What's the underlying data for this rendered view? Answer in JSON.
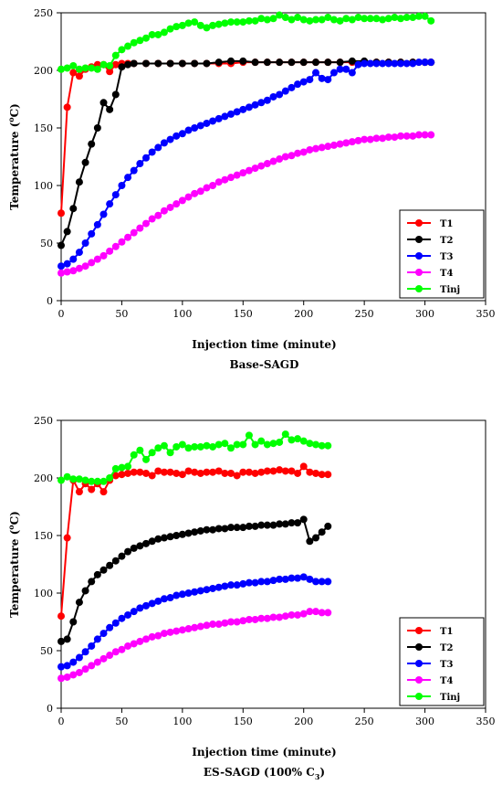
{
  "chart_data": [
    {
      "type": "line",
      "caption": "Base-SAGD",
      "xlabel": "Injection time (minute)",
      "ylabel": "Temperature (",
      "ylabel_sup": "o",
      "ylabel_end": "C)",
      "xlim": [
        0,
        350
      ],
      "ylim": [
        0,
        250
      ],
      "xticks": [
        "0",
        "50",
        "100",
        "150",
        "200",
        "250",
        "300",
        "350"
      ],
      "yticks": [
        "0",
        "50",
        "100",
        "150",
        "200",
        "250"
      ],
      "grid": false,
      "legend_position": "bottom-right",
      "series": [
        {
          "name": "T1",
          "color": "#ff0000",
          "x": [
            0,
            5,
            10,
            15,
            20,
            25,
            30,
            35,
            40,
            45,
            50,
            55,
            60,
            70,
            80,
            90,
            100,
            110,
            120,
            130,
            140,
            150,
            160,
            170,
            180,
            190,
            200,
            210,
            220,
            230,
            240,
            250,
            260,
            270,
            280,
            290,
            300,
            305
          ],
          "y": [
            76,
            168,
            198,
            195,
            201,
            203,
            205,
            205,
            199,
            205,
            206,
            206,
            206,
            206,
            206,
            206,
            206,
            206,
            206,
            206,
            206,
            207,
            207,
            207,
            207,
            207,
            207,
            207,
            207,
            207,
            207,
            207,
            207,
            207,
            207,
            207,
            207,
            207
          ]
        },
        {
          "name": "T2",
          "color": "#000000",
          "x": [
            0,
            5,
            10,
            15,
            20,
            25,
            30,
            35,
            40,
            45,
            50,
            55,
            60,
            70,
            80,
            90,
            100,
            110,
            120,
            130,
            140,
            150,
            160,
            170,
            180,
            190,
            200,
            210,
            220,
            230,
            240,
            250,
            260,
            270,
            280,
            290,
            300,
            305
          ],
          "y": [
            48,
            60,
            80,
            103,
            120,
            136,
            150,
            172,
            166,
            179,
            203,
            205,
            206,
            206,
            206,
            206,
            206,
            206,
            206,
            207,
            208,
            208,
            207,
            207,
            207,
            207,
            207,
            207,
            207,
            207,
            208,
            208,
            207,
            207,
            207,
            207,
            207,
            207
          ]
        },
        {
          "name": "T3",
          "color": "#0000ff",
          "x": [
            0,
            5,
            10,
            15,
            20,
            25,
            30,
            35,
            40,
            45,
            50,
            55,
            60,
            65,
            70,
            75,
            80,
            85,
            90,
            95,
            100,
            105,
            110,
            115,
            120,
            125,
            130,
            135,
            140,
            145,
            150,
            155,
            160,
            165,
            170,
            175,
            180,
            185,
            190,
            195,
            200,
            205,
            210,
            215,
            220,
            225,
            230,
            235,
            240,
            245,
            250,
            255,
            260,
            265,
            270,
            275,
            280,
            285,
            290,
            295,
            300,
            305
          ],
          "y": [
            30,
            32,
            36,
            42,
            50,
            58,
            66,
            75,
            84,
            92,
            100,
            107,
            113,
            119,
            124,
            129,
            133,
            137,
            140,
            143,
            145,
            148,
            150,
            152,
            154,
            156,
            158,
            160,
            162,
            164,
            166,
            168,
            170,
            172,
            174,
            177,
            179,
            182,
            185,
            188,
            190,
            192,
            198,
            193,
            192,
            198,
            201,
            201,
            198,
            205,
            206,
            206,
            206,
            206,
            206,
            206,
            206,
            206,
            206,
            207,
            207,
            207
          ]
        },
        {
          "name": "T4",
          "color": "#ff00ff",
          "x": [
            0,
            5,
            10,
            15,
            20,
            25,
            30,
            35,
            40,
            45,
            50,
            55,
            60,
            65,
            70,
            75,
            80,
            85,
            90,
            95,
            100,
            105,
            110,
            115,
            120,
            125,
            130,
            135,
            140,
            145,
            150,
            155,
            160,
            165,
            170,
            175,
            180,
            185,
            190,
            195,
            200,
            205,
            210,
            215,
            220,
            225,
            230,
            235,
            240,
            245,
            250,
            255,
            260,
            265,
            270,
            275,
            280,
            285,
            290,
            295,
            300,
            305
          ],
          "y": [
            24,
            25,
            26,
            28,
            30,
            33,
            36,
            39,
            43,
            47,
            51,
            55,
            59,
            63,
            67,
            71,
            74,
            78,
            81,
            84,
            87,
            90,
            93,
            95,
            98,
            100,
            103,
            105,
            107,
            109,
            111,
            113,
            115,
            117,
            119,
            121,
            123,
            125,
            126,
            128,
            129,
            131,
            132,
            133,
            134,
            135,
            136,
            137,
            138,
            139,
            140,
            140,
            141,
            141,
            142,
            142,
            143,
            143,
            143,
            144,
            144,
            144
          ]
        },
        {
          "name": "Tinj",
          "color": "#00ff00",
          "x": [
            0,
            5,
            10,
            15,
            20,
            25,
            30,
            35,
            40,
            45,
            50,
            55,
            60,
            65,
            70,
            75,
            80,
            85,
            90,
            95,
            100,
            105,
            110,
            115,
            120,
            125,
            130,
            135,
            140,
            145,
            150,
            155,
            160,
            165,
            170,
            175,
            180,
            185,
            190,
            195,
            200,
            205,
            210,
            215,
            220,
            225,
            230,
            235,
            240,
            245,
            250,
            255,
            260,
            265,
            270,
            275,
            280,
            285,
            290,
            295,
            300,
            305
          ],
          "y": [
            201,
            202,
            204,
            201,
            202,
            202,
            201,
            205,
            204,
            213,
            218,
            221,
            224,
            226,
            228,
            231,
            231,
            233,
            236,
            238,
            239,
            241,
            242,
            239,
            237,
            239,
            240,
            241,
            242,
            242,
            242,
            243,
            243,
            245,
            244,
            245,
            248,
            246,
            244,
            246,
            244,
            243,
            244,
            244,
            246,
            244,
            243,
            245,
            244,
            246,
            245,
            245,
            245,
            244,
            245,
            246,
            245,
            246,
            246,
            247,
            247,
            243
          ]
        }
      ]
    },
    {
      "type": "line",
      "caption": "ES-SAGD (100% C",
      "caption_sub": "3",
      "caption_end": ")",
      "xlabel": "Injection time (minute)",
      "ylabel": "Temperature (",
      "ylabel_sup": "o",
      "ylabel_end": "C)",
      "xlim": [
        0,
        350
      ],
      "ylim": [
        0,
        250
      ],
      "xticks": [
        "0",
        "50",
        "100",
        "150",
        "200",
        "250",
        "300",
        "350"
      ],
      "yticks": [
        "0",
        "50",
        "100",
        "150",
        "200",
        "250"
      ],
      "grid": false,
      "legend_position": "bottom-right",
      "series": [
        {
          "name": "T1",
          "color": "#ff0000",
          "x": [
            0,
            5,
            10,
            15,
            20,
            25,
            30,
            35,
            40,
            45,
            50,
            55,
            60,
            65,
            70,
            75,
            80,
            85,
            90,
            95,
            100,
            105,
            110,
            115,
            120,
            125,
            130,
            135,
            140,
            145,
            150,
            155,
            160,
            165,
            170,
            175,
            180,
            185,
            190,
            195,
            200,
            205,
            210,
            215,
            220
          ],
          "y": [
            80,
            148,
            198,
            188,
            195,
            190,
            195,
            188,
            198,
            202,
            203,
            204,
            205,
            205,
            204,
            202,
            206,
            205,
            205,
            204,
            203,
            206,
            205,
            204,
            205,
            205,
            206,
            204,
            204,
            202,
            205,
            205,
            204,
            205,
            206,
            206,
            207,
            206,
            206,
            204,
            210,
            205,
            204,
            203,
            203
          ]
        },
        {
          "name": "T2",
          "color": "#000000",
          "x": [
            0,
            5,
            10,
            15,
            20,
            25,
            30,
            35,
            40,
            45,
            50,
            55,
            60,
            65,
            70,
            75,
            80,
            85,
            90,
            95,
            100,
            105,
            110,
            115,
            120,
            125,
            130,
            135,
            140,
            145,
            150,
            155,
            160,
            165,
            170,
            175,
            180,
            185,
            190,
            195,
            200,
            205,
            210,
            215,
            220
          ],
          "y": [
            58,
            60,
            75,
            92,
            102,
            110,
            116,
            120,
            124,
            128,
            132,
            136,
            139,
            141,
            143,
            145,
            147,
            148,
            149,
            150,
            151,
            152,
            153,
            154,
            155,
            155,
            156,
            156,
            157,
            157,
            157,
            158,
            158,
            159,
            159,
            159,
            160,
            160,
            161,
            161,
            164,
            145,
            148,
            153,
            158
          ]
        },
        {
          "name": "T3",
          "color": "#0000ff",
          "x": [
            0,
            5,
            10,
            15,
            20,
            25,
            30,
            35,
            40,
            45,
            50,
            55,
            60,
            65,
            70,
            75,
            80,
            85,
            90,
            95,
            100,
            105,
            110,
            115,
            120,
            125,
            130,
            135,
            140,
            145,
            150,
            155,
            160,
            165,
            170,
            175,
            180,
            185,
            190,
            195,
            200,
            205,
            210,
            215,
            220
          ],
          "y": [
            36,
            37,
            40,
            44,
            49,
            54,
            60,
            65,
            70,
            74,
            78,
            81,
            84,
            87,
            89,
            91,
            93,
            95,
            96,
            98,
            99,
            100,
            101,
            102,
            103,
            104,
            105,
            106,
            107,
            107,
            108,
            109,
            109,
            110,
            110,
            111,
            112,
            112,
            113,
            113,
            114,
            112,
            110,
            110,
            110
          ]
        },
        {
          "name": "T4",
          "color": "#ff00ff",
          "x": [
            0,
            5,
            10,
            15,
            20,
            25,
            30,
            35,
            40,
            45,
            50,
            55,
            60,
            65,
            70,
            75,
            80,
            85,
            90,
            95,
            100,
            105,
            110,
            115,
            120,
            125,
            130,
            135,
            140,
            145,
            150,
            155,
            160,
            165,
            170,
            175,
            180,
            185,
            190,
            195,
            200,
            205,
            210,
            215,
            220
          ],
          "y": [
            26,
            27,
            29,
            31,
            34,
            37,
            40,
            43,
            46,
            49,
            51,
            54,
            56,
            58,
            60,
            62,
            63,
            65,
            66,
            67,
            68,
            69,
            70,
            71,
            72,
            73,
            73,
            74,
            75,
            75,
            76,
            77,
            77,
            78,
            78,
            79,
            79,
            80,
            81,
            81,
            82,
            84,
            84,
            83,
            83
          ]
        },
        {
          "name": "Tinj",
          "color": "#00ff00",
          "x": [
            0,
            5,
            10,
            15,
            20,
            25,
            30,
            35,
            40,
            45,
            50,
            55,
            60,
            65,
            70,
            75,
            80,
            85,
            90,
            95,
            100,
            105,
            110,
            115,
            120,
            125,
            130,
            135,
            140,
            145,
            150,
            155,
            160,
            165,
            170,
            175,
            180,
            185,
            190,
            195,
            200,
            205,
            210,
            215,
            220
          ],
          "y": [
            198,
            201,
            199,
            199,
            198,
            197,
            197,
            197,
            200,
            208,
            209,
            210,
            220,
            224,
            216,
            222,
            226,
            228,
            222,
            227,
            229,
            226,
            227,
            227,
            228,
            227,
            229,
            230,
            226,
            229,
            229,
            237,
            229,
            232,
            229,
            230,
            231,
            238,
            233,
            234,
            232,
            230,
            229,
            228,
            228
          ]
        }
      ]
    }
  ]
}
